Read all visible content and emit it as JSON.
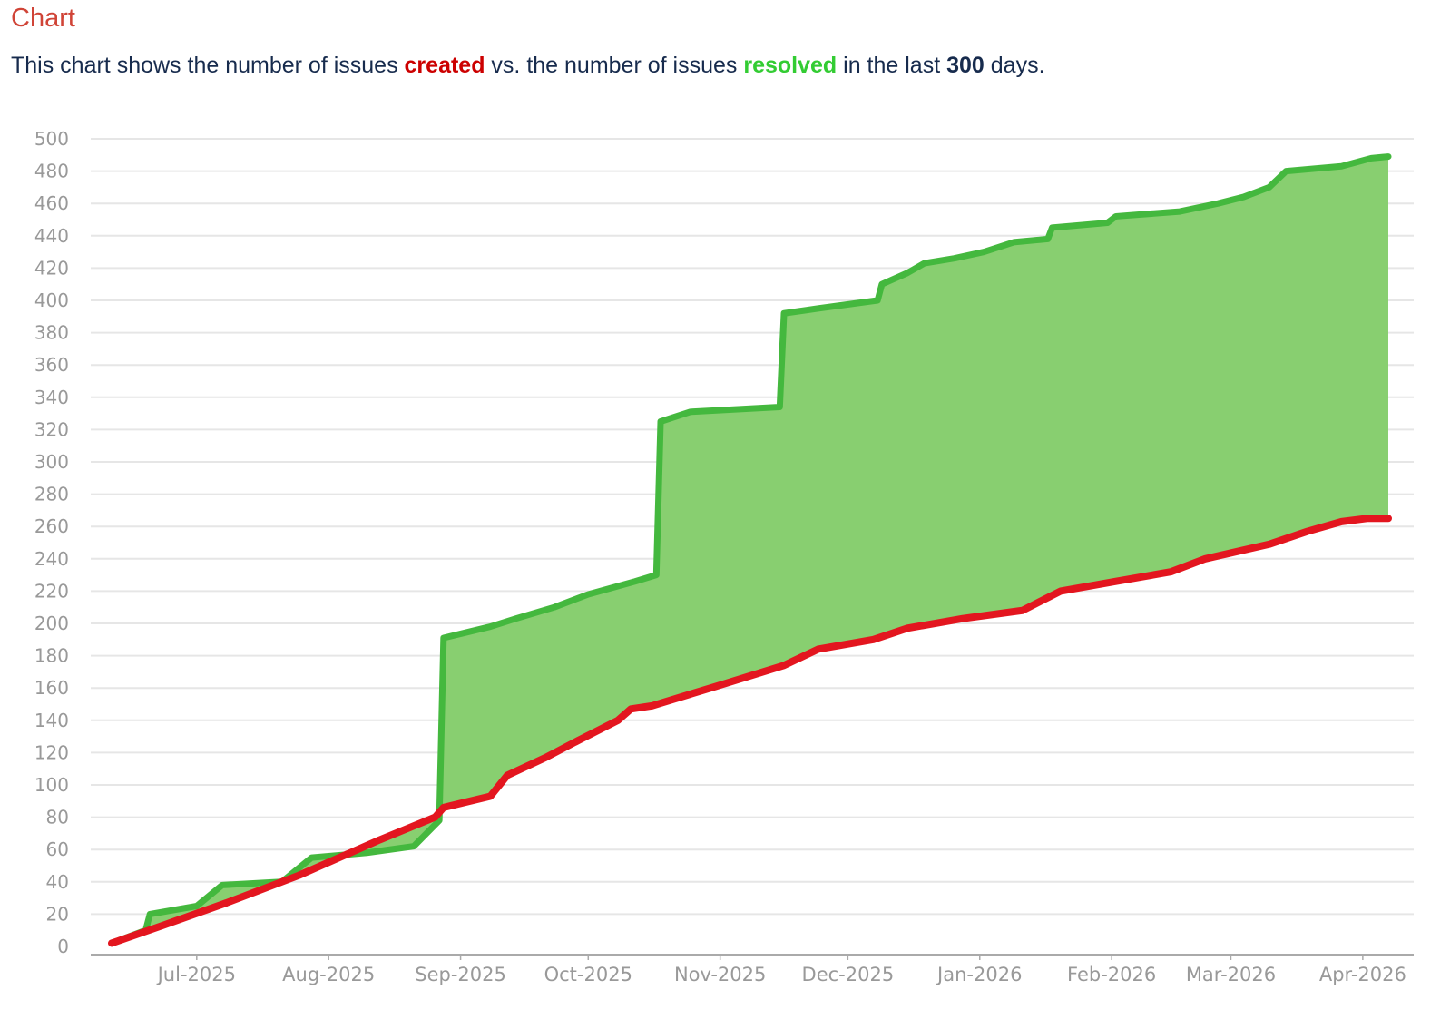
{
  "header": {
    "title": "Chart",
    "description": {
      "prefix": "This chart shows the number of issues ",
      "created_word": "created",
      "middle": " vs. the number of issues ",
      "resolved_word": "resolved",
      "suffix_before_days": " in the last ",
      "days": "300",
      "suffix": " days."
    }
  },
  "colors": {
    "title": "#d04437",
    "created": "#cc0000",
    "resolved": "#33cc33",
    "created_line": "#e3161f",
    "resolved_line": "#44b83e",
    "fill_area": "#88cf70",
    "grid": "#e6e6e6",
    "axis": "#999999"
  },
  "chart_data": {
    "type": "area",
    "title": "Chart",
    "subtitle": "This chart shows the number of issues created vs. the number of issues resolved in the last 300 days.",
    "xlabel": "",
    "ylabel": "",
    "ylim": [
      0,
      500
    ],
    "yticks": [
      0,
      20,
      40,
      60,
      80,
      100,
      120,
      140,
      160,
      180,
      200,
      220,
      240,
      260,
      280,
      300,
      320,
      340,
      360,
      380,
      400,
      420,
      440,
      460,
      480,
      500
    ],
    "xticks": [
      {
        "label": "Jul-2025",
        "day": 20
      },
      {
        "label": "Aug-2025",
        "day": 51
      },
      {
        "label": "Sep-2025",
        "day": 82
      },
      {
        "label": "Oct-2025",
        "day": 112
      },
      {
        "label": "Nov-2025",
        "day": 143
      },
      {
        "label": "Dec-2025",
        "day": 173
      },
      {
        "label": "Jan-2026",
        "day": 204
      },
      {
        "label": "Feb-2026",
        "day": 235
      },
      {
        "label": "Mar-2026",
        "day": 263
      },
      {
        "label": "Apr-2026",
        "day": 294
      }
    ],
    "xlim": [
      -5,
      306
    ],
    "grid": true,
    "legend": "none (colors explained in subtitle)",
    "fill_between": "resolved above created shaded green",
    "series": [
      {
        "name": "created",
        "color": "#e3161f",
        "points": [
          [
            0,
            2
          ],
          [
            12,
            13
          ],
          [
            27,
            27
          ],
          [
            44,
            44
          ],
          [
            63,
            66
          ],
          [
            76,
            80
          ],
          [
            78,
            86
          ],
          [
            89,
            93
          ],
          [
            93,
            106
          ],
          [
            102,
            117
          ],
          [
            110,
            128
          ],
          [
            119,
            140
          ],
          [
            122,
            147
          ],
          [
            127,
            149
          ],
          [
            142,
            161
          ],
          [
            158,
            174
          ],
          [
            166,
            184
          ],
          [
            179,
            190
          ],
          [
            187,
            197
          ],
          [
            200,
            203
          ],
          [
            214,
            208
          ],
          [
            223,
            220
          ],
          [
            236,
            226
          ],
          [
            249,
            232
          ],
          [
            257,
            240
          ],
          [
            272,
            249
          ],
          [
            281,
            257
          ],
          [
            289,
            263
          ],
          [
            295,
            265
          ],
          [
            300,
            265
          ]
        ]
      },
      {
        "name": "resolved",
        "color": "#44b83e",
        "points": [
          [
            0,
            2
          ],
          [
            8,
            10
          ],
          [
            9,
            20
          ],
          [
            20,
            25
          ],
          [
            26,
            38
          ],
          [
            40,
            40
          ],
          [
            47,
            55
          ],
          [
            60,
            58
          ],
          [
            71,
            62
          ],
          [
            77,
            78
          ],
          [
            78,
            191
          ],
          [
            89,
            198
          ],
          [
            95,
            203
          ],
          [
            104,
            210
          ],
          [
            112,
            218
          ],
          [
            123,
            226
          ],
          [
            128,
            230
          ],
          [
            129,
            325
          ],
          [
            136,
            331
          ],
          [
            157,
            334
          ],
          [
            158,
            392
          ],
          [
            166,
            395
          ],
          [
            180,
            400
          ],
          [
            181,
            410
          ],
          [
            187,
            417
          ],
          [
            191,
            423
          ],
          [
            198,
            426
          ],
          [
            205,
            430
          ],
          [
            212,
            436
          ],
          [
            220,
            438
          ],
          [
            221,
            445
          ],
          [
            234,
            448
          ],
          [
            236,
            452
          ],
          [
            251,
            455
          ],
          [
            260,
            460
          ],
          [
            266,
            464
          ],
          [
            272,
            470
          ],
          [
            276,
            480
          ],
          [
            289,
            483
          ],
          [
            296,
            488
          ],
          [
            300,
            489
          ]
        ]
      }
    ]
  }
}
